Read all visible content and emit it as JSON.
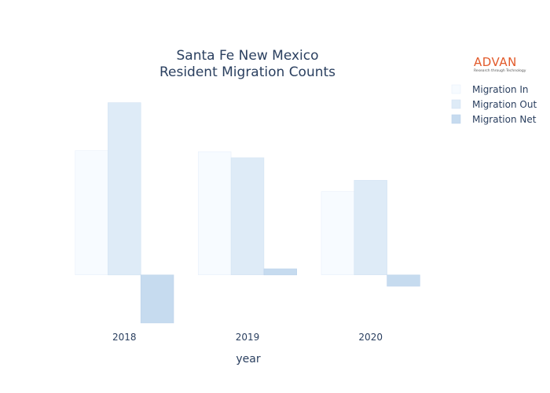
{
  "chart_data": {
    "type": "bar",
    "title_line1": "Santa Fe New Mexico",
    "title_line2": "Resident Migration Counts",
    "xlabel": "year",
    "ylabel": "",
    "categories": [
      "2018",
      "2019",
      "2020"
    ],
    "series": [
      {
        "name": "Migration In",
        "values": [
          1215,
          1205,
          815
        ],
        "color": "#f7fbff",
        "stroke": "#e8f0fa"
      },
      {
        "name": "Migration Out",
        "values": [
          1685,
          1145,
          925
        ],
        "color": "#deebf7",
        "stroke": "#d3e3f3"
      },
      {
        "name": "Migration Net",
        "values": [
          -470,
          60,
          -110
        ],
        "color": "#c6dbef",
        "stroke": "#bcd3eb"
      }
    ],
    "ylim": [
      -540,
      1920
    ],
    "grid": false,
    "legend_position": "top-right"
  },
  "logo": {
    "name": "ADVAN",
    "tagline": "Research through Technology"
  }
}
